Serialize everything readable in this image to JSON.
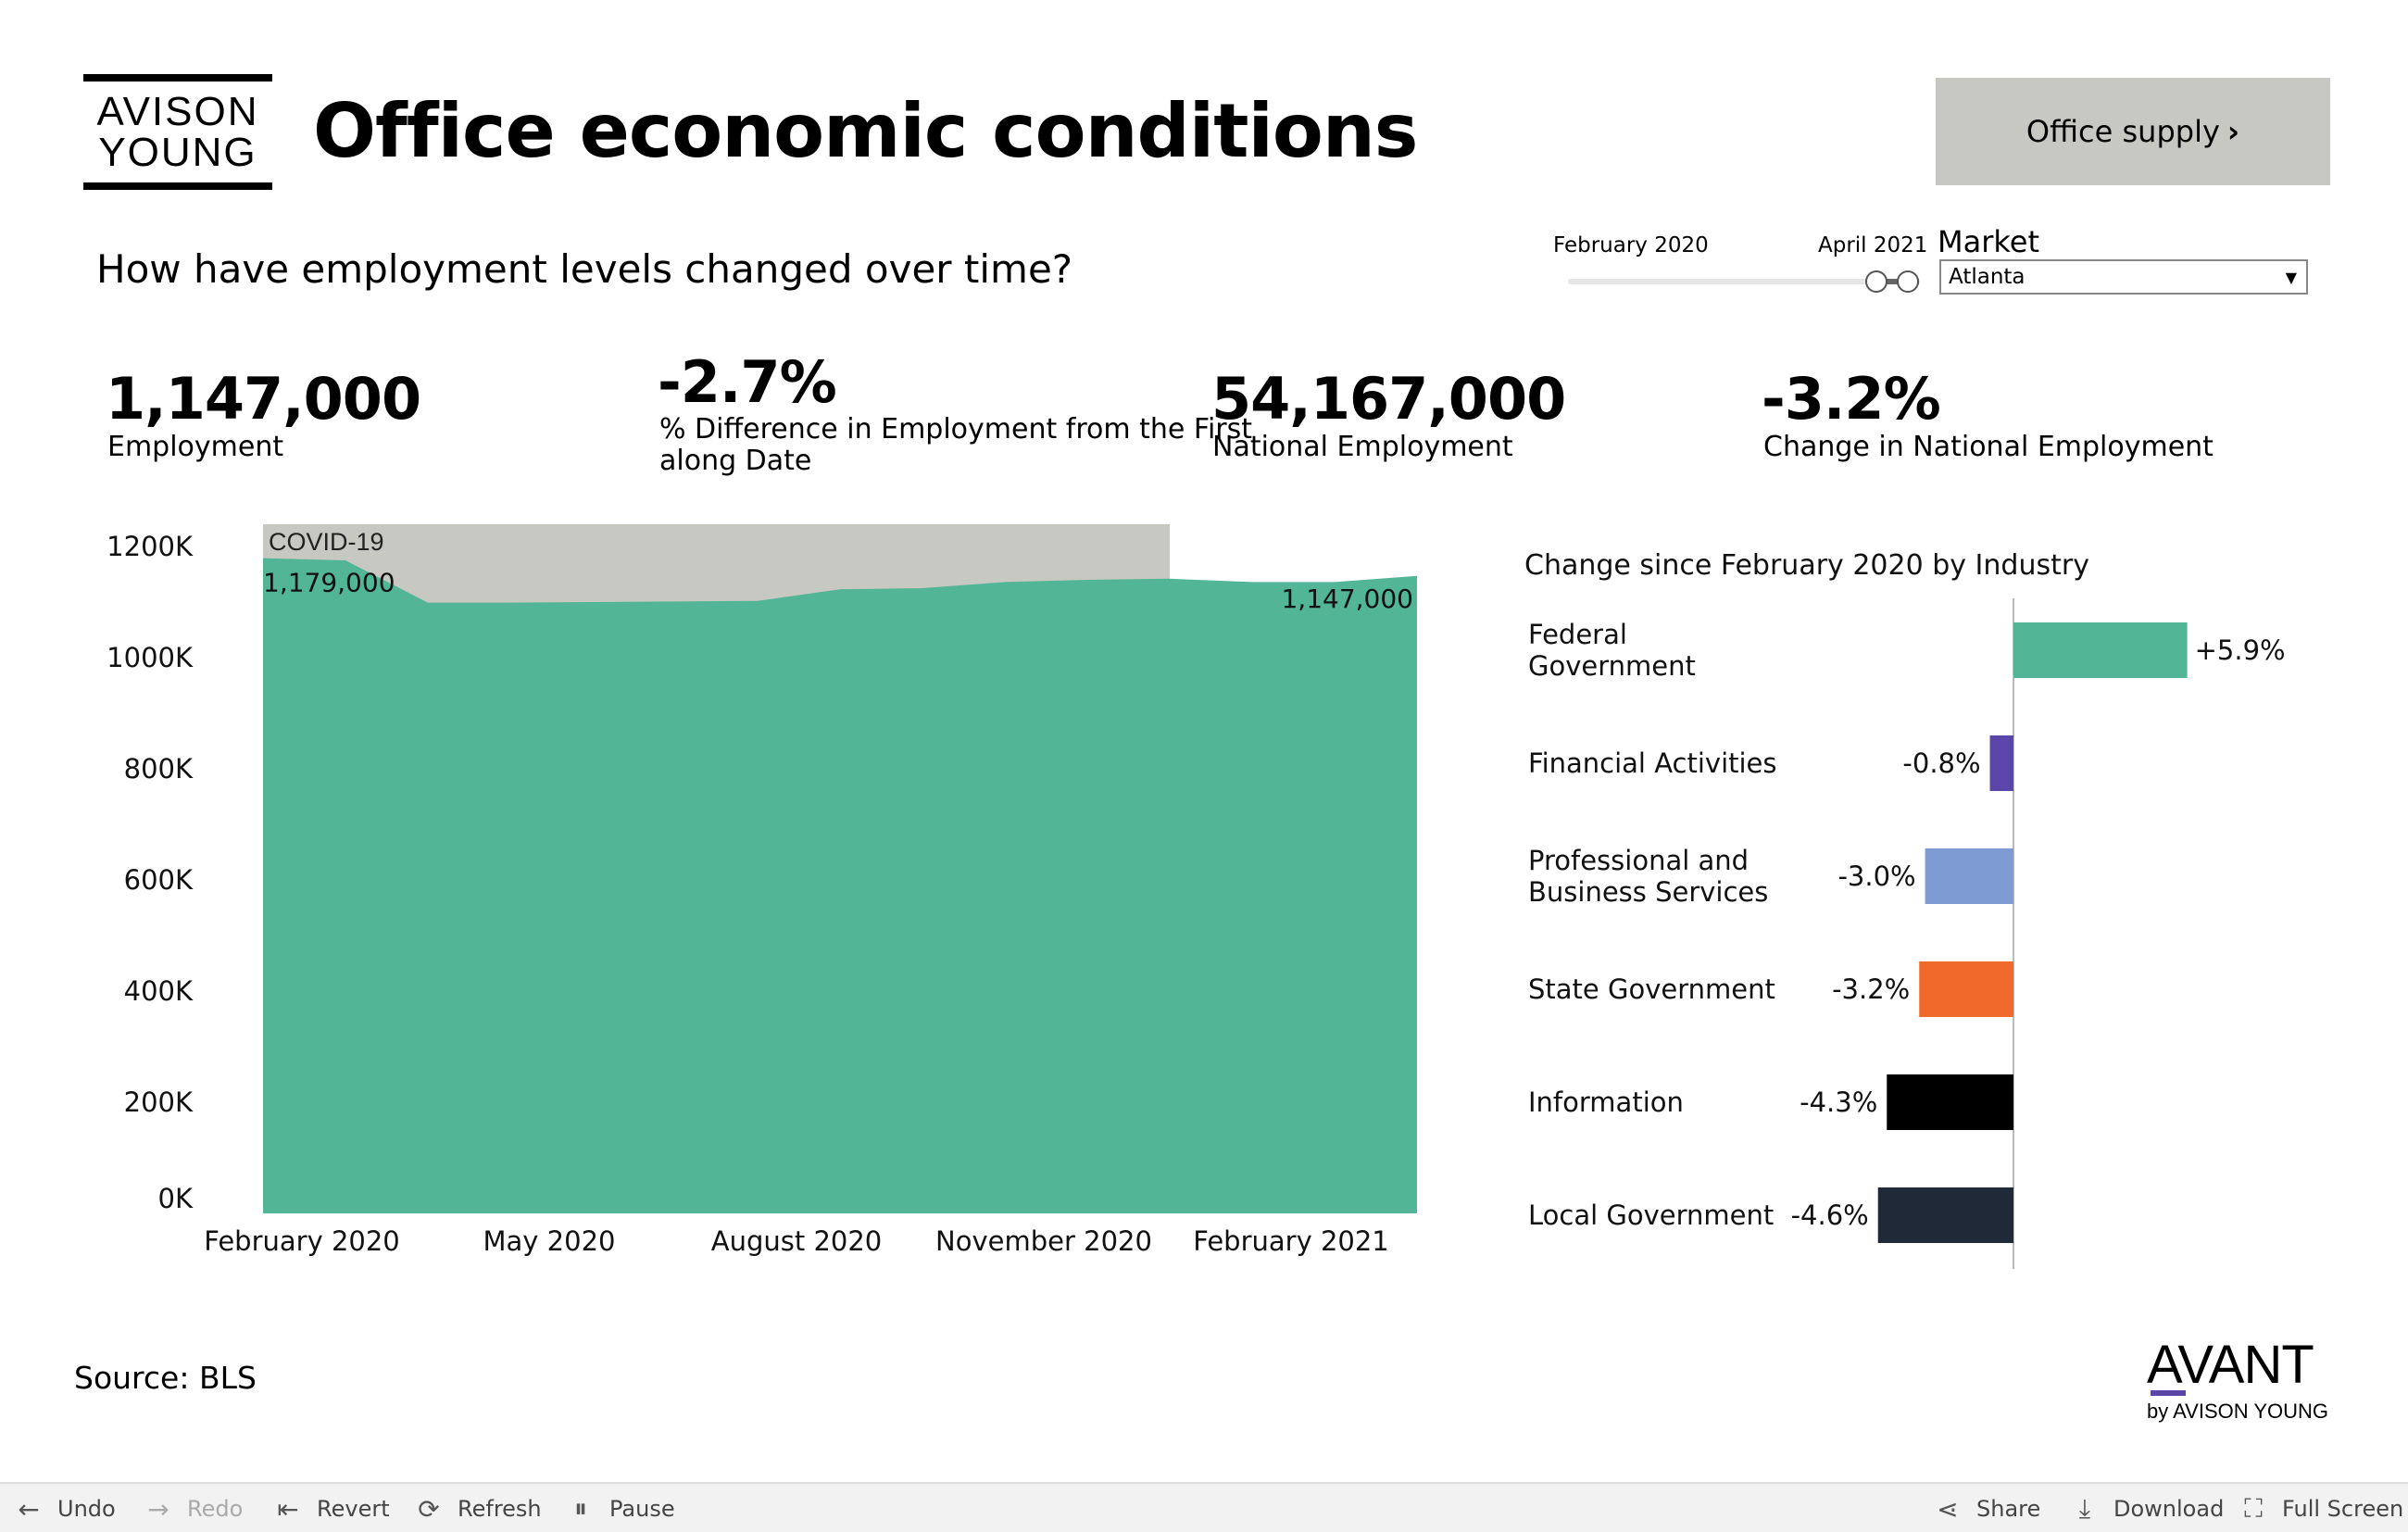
{
  "header": {
    "logo_line1": "AVISON",
    "logo_line2": "YOUNG",
    "title": "Office economic conditions",
    "nav_button_label": "Office supply",
    "nav_button_chevron": "›"
  },
  "question": "How have employment levels changed over time?",
  "date_filter": {
    "start_label": "February 2020",
    "end_label": "April 2021"
  },
  "market_filter": {
    "label": "Market",
    "selected": "Atlanta"
  },
  "kpis": {
    "employment_value": "1,147,000",
    "employment_label": "Employment",
    "pct_diff_value": "-2.7%",
    "pct_diff_label_line1": "% Difference in Employment from the First",
    "pct_diff_label_line2": "along Date",
    "national_value": "54,167,000",
    "national_label": "National Employment",
    "national_change_value": "-3.2%",
    "national_change_label": "Change in National Employment"
  },
  "chart_data": [
    {
      "type": "area",
      "x": [
        "2020-02",
        "2020-03",
        "2020-04",
        "2020-05",
        "2020-06",
        "2020-07",
        "2020-08",
        "2020-09",
        "2020-10",
        "2020-11",
        "2020-12",
        "2021-01",
        "2021-02",
        "2021-03",
        "2021-04"
      ],
      "values": [
        1179000,
        1175000,
        1099000,
        1099000,
        1100000,
        1101000,
        1102000,
        1123000,
        1125000,
        1136000,
        1140000,
        1142000,
        1136000,
        1136000,
        1147000
      ],
      "x_tick_labels": [
        "February 2020",
        "May 2020",
        "August 2020",
        "November 2020",
        "February 2021"
      ],
      "y_tick_labels": [
        "1200K",
        "1000K",
        "800K",
        "600K",
        "400K",
        "200K",
        "0K"
      ],
      "ylim": [
        0,
        1240000
      ],
      "annotation": {
        "label": "COVID-19",
        "from": "2020-02",
        "to": "2021-01",
        "color": "#c8c8c3"
      },
      "point_labels": {
        "first": "1,179,000",
        "last": "1,147,000"
      },
      "color": "#52b596"
    },
    {
      "type": "bar",
      "title": "Change since February 2020 by Industry",
      "orientation": "horizontal",
      "categories": [
        [
          "Federal",
          "Government"
        ],
        [
          "Financial Activities"
        ],
        [
          "Professional and",
          "Business Services"
        ],
        [
          "State Government"
        ],
        [
          "Information"
        ],
        [
          "Local Government"
        ]
      ],
      "values": [
        5.9,
        -0.8,
        -3.0,
        -3.2,
        -4.3,
        -4.6
      ],
      "value_labels": [
        "+5.9%",
        "-0.8%",
        "-3.0%",
        "-3.2%",
        "-4.3%",
        "-4.6%"
      ],
      "colors": [
        "#52b596",
        "#5b45a8",
        "#7f9bd4",
        "#f06a2b",
        "#000000",
        "#1f2937"
      ]
    }
  ],
  "source": "Source: BLS",
  "brand": {
    "name": "AVANT",
    "sub": "by AVISON YOUNG"
  },
  "toolbar": {
    "undo": "Undo",
    "redo": "Redo",
    "revert": "Revert",
    "refresh": "Refresh",
    "pause": "Pause",
    "share": "Share",
    "download": "Download",
    "fullscreen": "Full Screen"
  }
}
